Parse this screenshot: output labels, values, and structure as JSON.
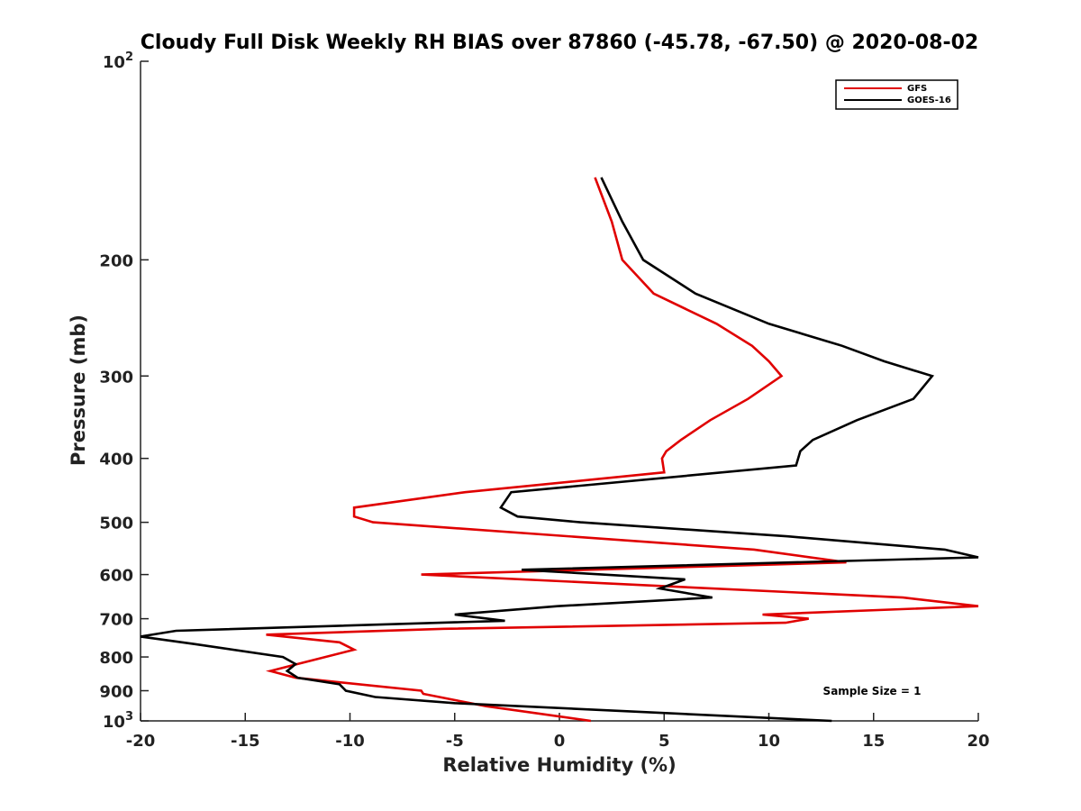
{
  "chart_data": {
    "type": "line",
    "title": "Cloudy Full Disk Weekly RH BIAS over 87860 (-45.78, -67.50) @ 2020-08-02",
    "xlabel": "Relative Humidity (%)",
    "ylabel": "Pressure (mb)",
    "xlim": [
      -20,
      20
    ],
    "ylim": [
      100,
      1000
    ],
    "y_scale": "log",
    "y_reversed": true,
    "grid": false,
    "x_ticks": [
      -20,
      -15,
      -10,
      -5,
      0,
      5,
      10,
      15,
      20
    ],
    "y_ticks": [
      {
        "value": 100,
        "base": "10",
        "exp": "2"
      },
      {
        "value": 200,
        "label": "200"
      },
      {
        "value": 300,
        "label": "300"
      },
      {
        "value": 400,
        "label": "400"
      },
      {
        "value": 500,
        "label": "500"
      },
      {
        "value": 600,
        "label": "600"
      },
      {
        "value": 700,
        "label": "700"
      },
      {
        "value": 800,
        "label": "800"
      },
      {
        "value": 900,
        "label": "900"
      },
      {
        "value": 1000,
        "base": "10",
        "exp": "3"
      }
    ],
    "legend_position": "top-right",
    "annotation": "Sample Size = 1",
    "series": [
      {
        "name": "GFS",
        "color": "#e00000",
        "points": [
          [
            1.7,
            150
          ],
          [
            2.5,
            175
          ],
          [
            3.0,
            200
          ],
          [
            4.5,
            225
          ],
          [
            7.5,
            250
          ],
          [
            9.2,
            270
          ],
          [
            10.0,
            285
          ],
          [
            10.6,
            300
          ],
          [
            9.0,
            325
          ],
          [
            7.2,
            350
          ],
          [
            5.8,
            375
          ],
          [
            5.1,
            390
          ],
          [
            4.9,
            400
          ],
          [
            5.0,
            420
          ],
          [
            -4.5,
            450
          ],
          [
            -9.8,
            475
          ],
          [
            -9.8,
            490
          ],
          [
            -8.9,
            500
          ],
          [
            9.3,
            550
          ],
          [
            13.7,
            575
          ],
          [
            -6.6,
            600
          ],
          [
            16.4,
            650
          ],
          [
            20.0,
            670
          ],
          [
            9.7,
            690
          ],
          [
            11.9,
            700
          ],
          [
            10.8,
            710
          ],
          [
            -5.5,
            725
          ],
          [
            -14.0,
            740
          ],
          [
            -10.5,
            760
          ],
          [
            -9.8,
            780
          ],
          [
            -12.5,
            820
          ],
          [
            -13.8,
            840
          ],
          [
            -12.6,
            860
          ],
          [
            -6.6,
            900
          ],
          [
            -6.5,
            910
          ],
          [
            -5.0,
            930
          ],
          [
            -3.5,
            950
          ],
          [
            1.5,
            1000
          ]
        ]
      },
      {
        "name": "GOES-16",
        "color": "#000000",
        "points": [
          [
            2.0,
            150
          ],
          [
            3.0,
            175
          ],
          [
            4.0,
            200
          ],
          [
            6.5,
            225
          ],
          [
            10.0,
            250
          ],
          [
            13.5,
            270
          ],
          [
            15.5,
            285
          ],
          [
            17.8,
            300
          ],
          [
            16.9,
            325
          ],
          [
            14.2,
            350
          ],
          [
            12.1,
            375
          ],
          [
            11.5,
            390
          ],
          [
            11.3,
            410
          ],
          [
            -2.3,
            450
          ],
          [
            -2.8,
            475
          ],
          [
            -2.0,
            490
          ],
          [
            1.0,
            500
          ],
          [
            10.9,
            525
          ],
          [
            18.4,
            550
          ],
          [
            20.0,
            565
          ],
          [
            -1.8,
            590
          ],
          [
            6.0,
            610
          ],
          [
            4.8,
            630
          ],
          [
            7.3,
            650
          ],
          [
            -0.1,
            670
          ],
          [
            -5.0,
            690
          ],
          [
            -2.6,
            705
          ],
          [
            -18.3,
            730
          ],
          [
            -20.0,
            745
          ],
          [
            -17.4,
            765
          ],
          [
            -13.2,
            800
          ],
          [
            -12.6,
            820
          ],
          [
            -13.0,
            840
          ],
          [
            -12.5,
            860
          ],
          [
            -10.5,
            880
          ],
          [
            -10.2,
            900
          ],
          [
            -8.8,
            920
          ],
          [
            -5.0,
            940
          ],
          [
            13.0,
            1000
          ]
        ]
      }
    ]
  }
}
